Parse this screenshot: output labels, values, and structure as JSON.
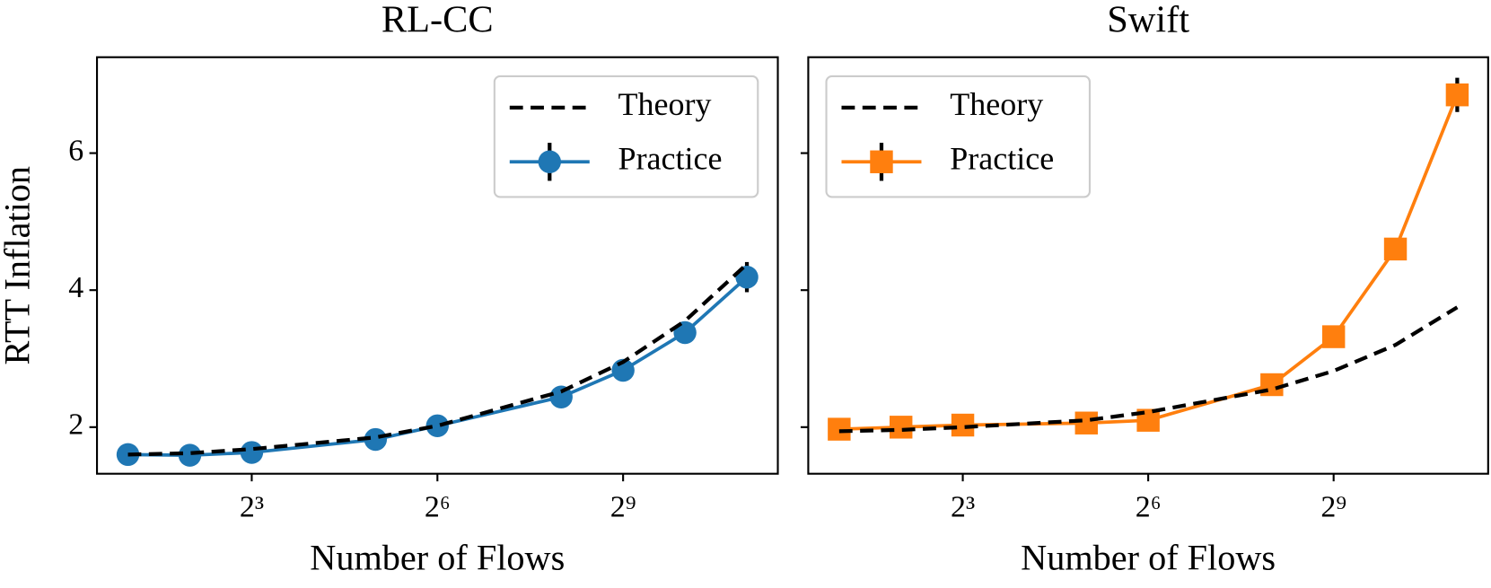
{
  "chart_data": [
    {
      "type": "line",
      "title": "RL-CC",
      "xlabel": "Number of Flows",
      "ylabel": "RTT Inflation",
      "xscale": "log",
      "x": [
        2,
        4,
        8,
        32,
        64,
        256,
        512,
        1024,
        2048
      ],
      "xlim": [
        1.414,
        2896.3
      ],
      "xticks": [
        {
          "value": 8,
          "label": "2³"
        },
        {
          "value": 64,
          "label": "2⁶"
        },
        {
          "value": 512,
          "label": "2⁹"
        }
      ],
      "ylim": [
        1.32,
        7.4
      ],
      "yticks": [
        2,
        4,
        6
      ],
      "show_ytick_labels": true,
      "legend": "upper right",
      "series": [
        {
          "name": "Theory",
          "color": "#000000",
          "style": "dashed",
          "values": [
            1.6,
            1.62,
            1.68,
            1.85,
            2.02,
            2.52,
            2.95,
            3.55,
            4.38
          ]
        },
        {
          "name": "Practice",
          "color": "#1f77b4",
          "style": "solid",
          "marker": "circle",
          "values": [
            1.6,
            1.59,
            1.63,
            1.82,
            2.02,
            2.44,
            2.83,
            3.38,
            4.19
          ],
          "errors": [
            0.02,
            0.02,
            0.02,
            0.03,
            0.03,
            0.04,
            0.05,
            0.06,
            0.22
          ]
        }
      ]
    },
    {
      "type": "line",
      "title": "Swift",
      "xlabel": "Number of Flows",
      "xscale": "log",
      "x": [
        2,
        4,
        8,
        32,
        64,
        256,
        512,
        1024,
        2048
      ],
      "xlim": [
        1.414,
        2896.3
      ],
      "xticks": [
        {
          "value": 8,
          "label": "2³"
        },
        {
          "value": 64,
          "label": "2⁶"
        },
        {
          "value": 512,
          "label": "2⁹"
        }
      ],
      "ylim": [
        1.32,
        7.4
      ],
      "yticks": [
        2,
        4,
        6
      ],
      "show_ytick_labels": false,
      "legend": "upper left",
      "series": [
        {
          "name": "Theory",
          "color": "#000000",
          "style": "dashed",
          "values": [
            1.94,
            1.96,
            2.0,
            2.1,
            2.22,
            2.55,
            2.82,
            3.2,
            3.75
          ]
        },
        {
          "name": "Practice",
          "color": "#ff7f0e",
          "style": "solid",
          "marker": "square",
          "values": [
            1.97,
            2.0,
            2.03,
            2.06,
            2.1,
            2.62,
            3.32,
            4.6,
            6.85
          ],
          "errors": [
            0.02,
            0.02,
            0.02,
            0.03,
            0.03,
            0.04,
            0.05,
            0.08,
            0.25
          ]
        }
      ]
    }
  ]
}
